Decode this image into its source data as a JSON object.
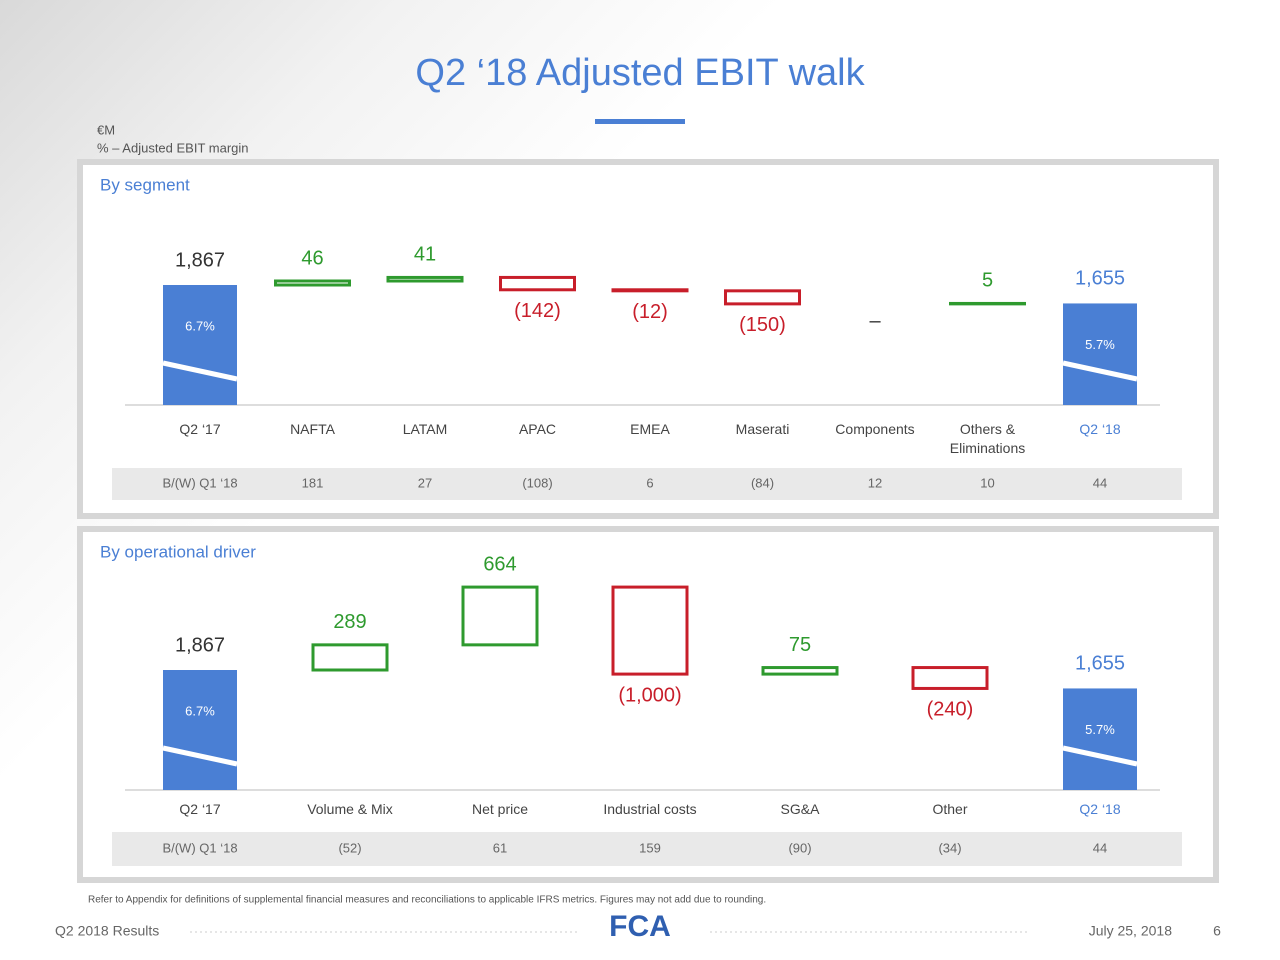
{
  "title": "Q2 ‘18 Adjusted EBIT walk",
  "units": [
    "€M",
    "% – Adjusted EBIT margin"
  ],
  "chart_data": [
    {
      "type": "waterfall",
      "title": "By segment",
      "categories": [
        "Q2 ‘17",
        "NAFTA",
        "LATAM",
        "APAC",
        "EMEA",
        "Maserati",
        "Components",
        "Others & Eliminations",
        "Q2 ‘18"
      ],
      "values": [
        1867,
        46,
        41,
        -142,
        -12,
        -150,
        0,
        5,
        1655
      ],
      "value_labels": [
        "1,867",
        "46",
        "41",
        "(142)",
        "(12)",
        "(150)",
        "–",
        "5",
        "1,655"
      ],
      "measure": [
        "total",
        "relative",
        "relative",
        "relative",
        "relative",
        "relative",
        "relative",
        "relative",
        "total"
      ],
      "margin_labels": [
        "6.7%",
        "5.7%"
      ],
      "colors": {
        "total": "#4a7fd4",
        "increase": "#2e9a2e",
        "decrease": "#c81e2a"
      },
      "comparison": {
        "label": "B/(W) Q1 ‘18",
        "values": [
          "181",
          "27",
          "(108)",
          "6",
          "(84)",
          "12",
          "10",
          "44"
        ]
      }
    },
    {
      "type": "waterfall",
      "title": "By operational driver",
      "categories": [
        "Q2 ‘17",
        "Volume & Mix",
        "Net price",
        "Industrial costs",
        "SG&A",
        "Other",
        "Q2 ‘18"
      ],
      "values": [
        1867,
        289,
        664,
        -1000,
        75,
        -240,
        1655
      ],
      "value_labels": [
        "1,867",
        "289",
        "664",
        "(1,000)",
        "75",
        "(240)",
        "1,655"
      ],
      "measure": [
        "total",
        "relative",
        "relative",
        "relative",
        "relative",
        "relative",
        "total"
      ],
      "margin_labels": [
        "6.7%",
        "5.7%"
      ],
      "colors": {
        "total": "#4a7fd4",
        "increase": "#2e9a2e",
        "decrease": "#c81e2a"
      },
      "comparison": {
        "label": "B/(W) Q1 ‘18",
        "values": [
          "(52)",
          "61",
          "159",
          "(90)",
          "(34)",
          "44"
        ]
      }
    }
  ],
  "footnote": "Refer to Appendix for definitions of supplemental financial measures and reconciliations to applicable IFRS metrics. Figures may not add due to rounding.",
  "footer": {
    "left": "Q2 2018 Results",
    "logo": "FCA",
    "date": "July 25, 2018",
    "page": "6"
  }
}
